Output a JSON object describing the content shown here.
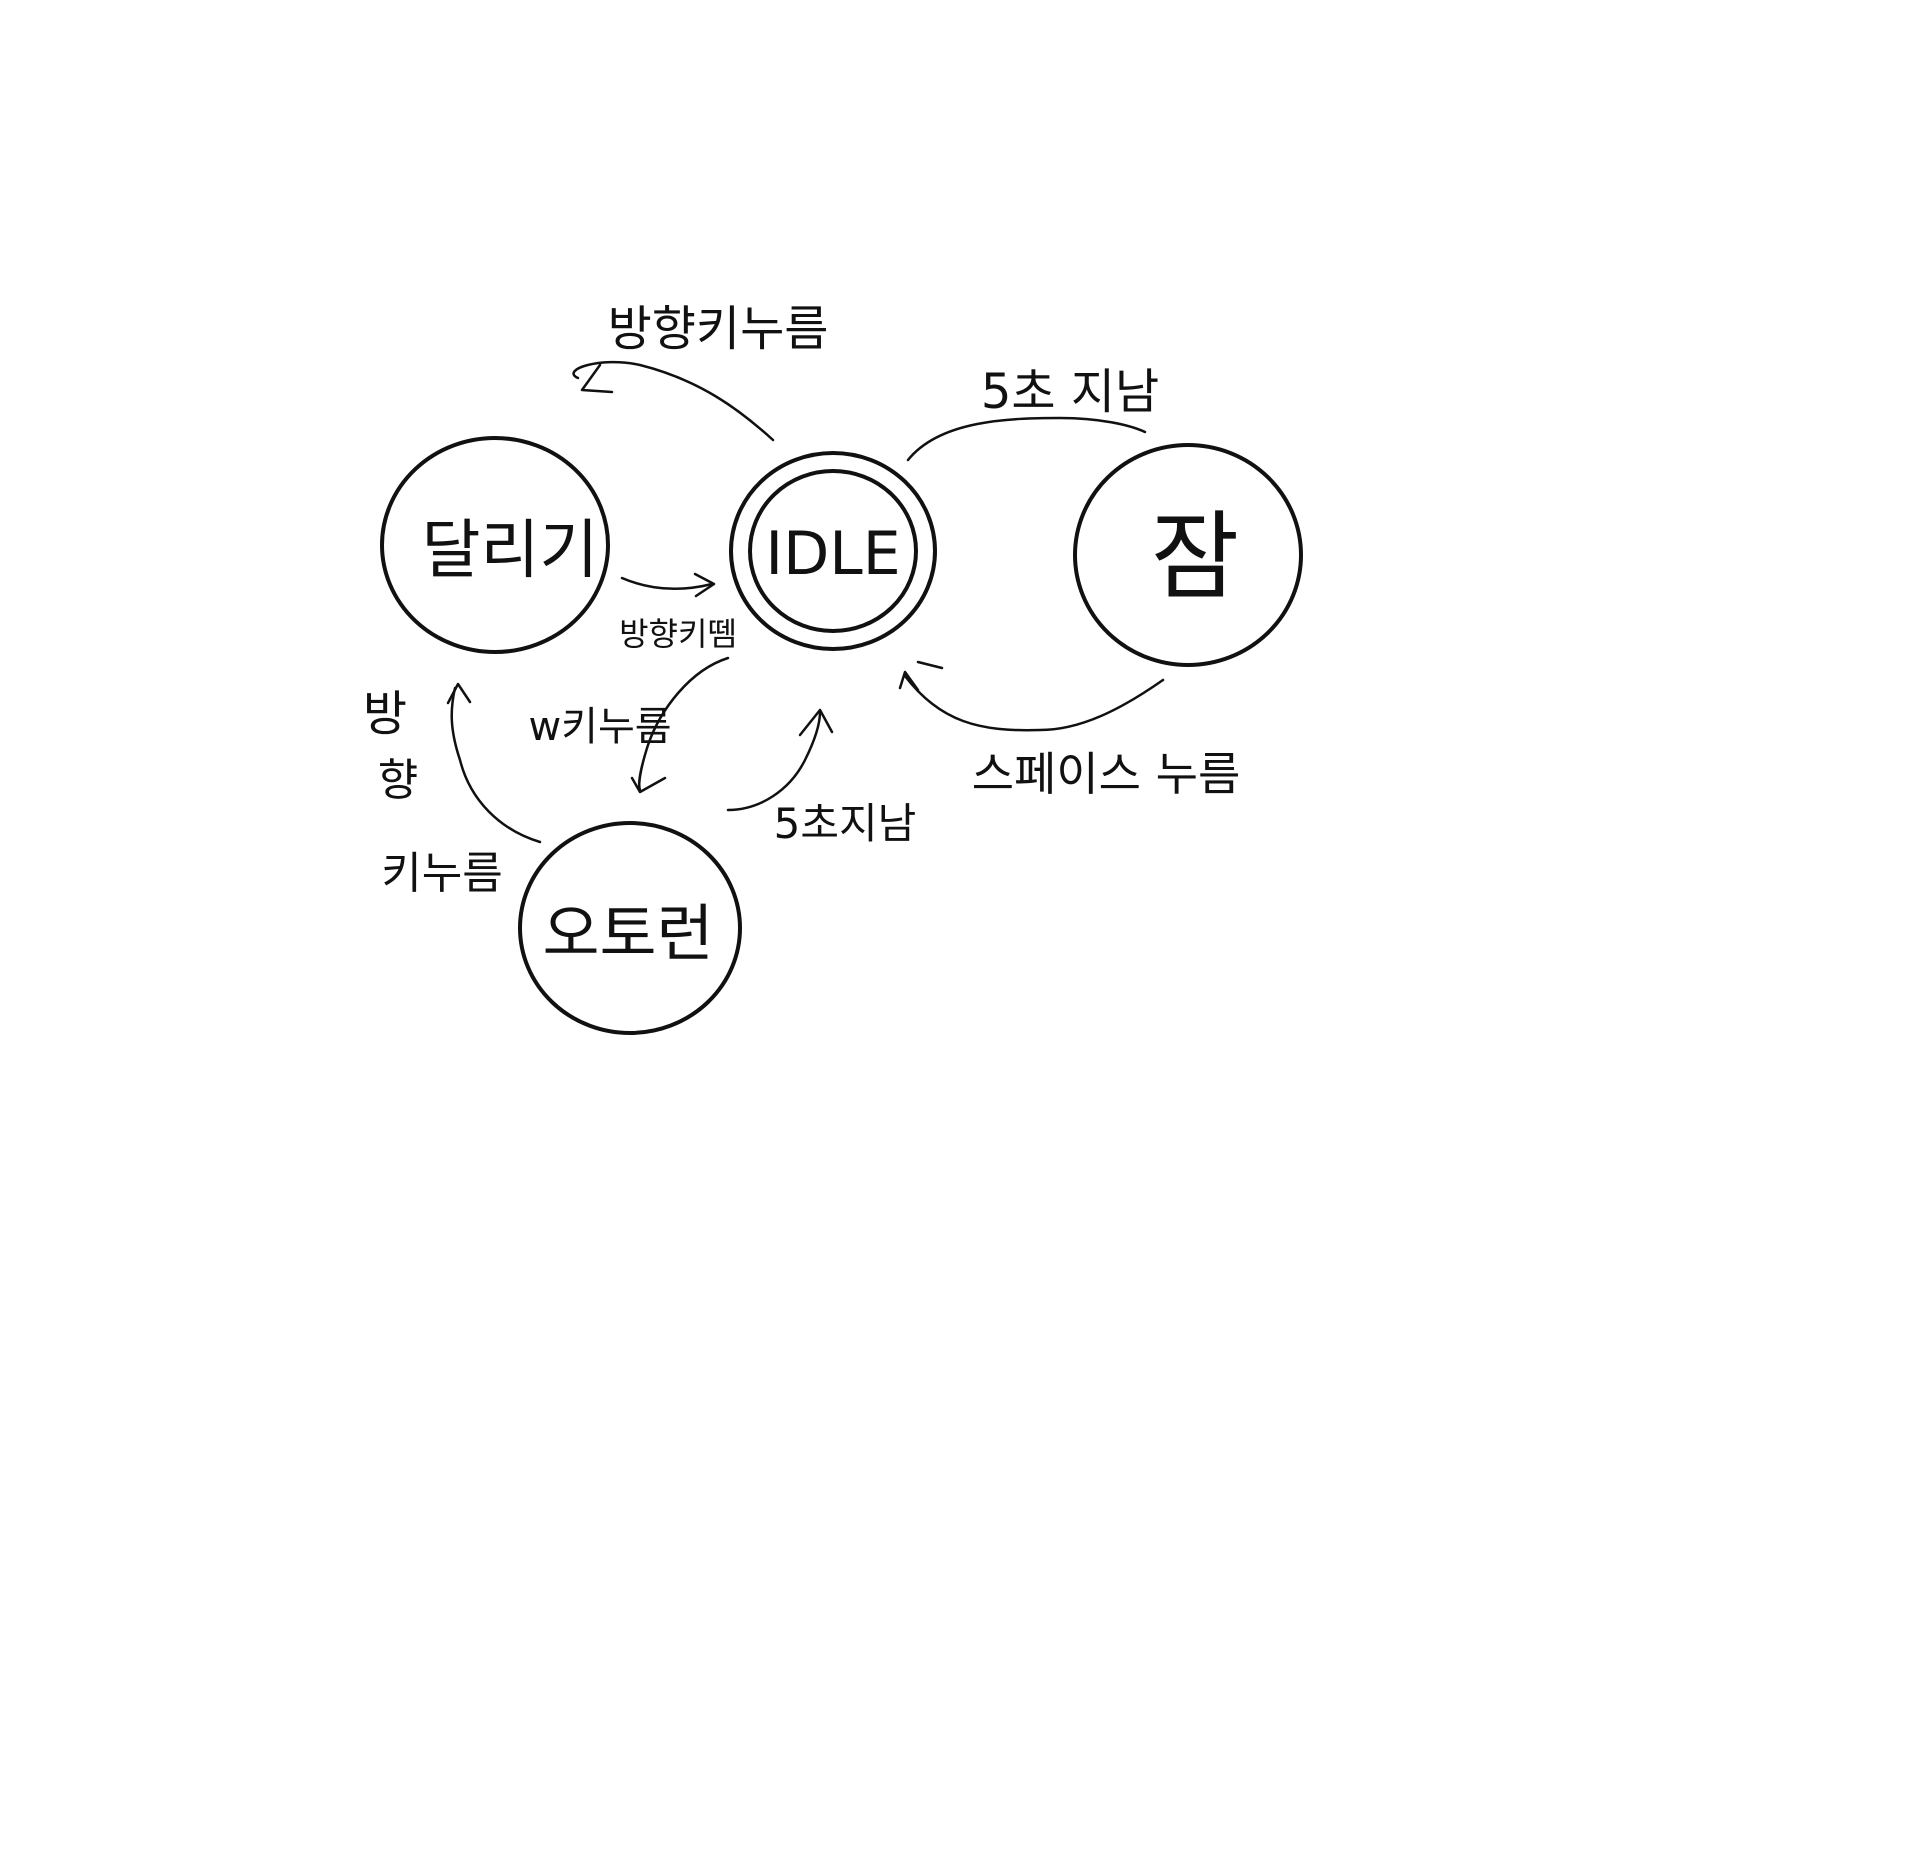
{
  "diagram": {
    "states": {
      "running": "달리기",
      "idle": "IDLE",
      "sleep": "잠",
      "autorun": "오토런"
    },
    "transitions": {
      "idle_to_running": "방향키누름",
      "idle_to_sleep": "5초 지남",
      "running_to_idle": "방향키뗌",
      "sleep_to_idle": "스페이스 누름",
      "idle_to_autorun": "w키누름",
      "autorun_to_idle": "5초지남",
      "autorun_to_running_line1": "방",
      "autorun_to_running_line2": "향",
      "autorun_to_running_line3": "키누름"
    },
    "colors": {
      "ink": "#111111",
      "background": "#ffffff"
    }
  }
}
